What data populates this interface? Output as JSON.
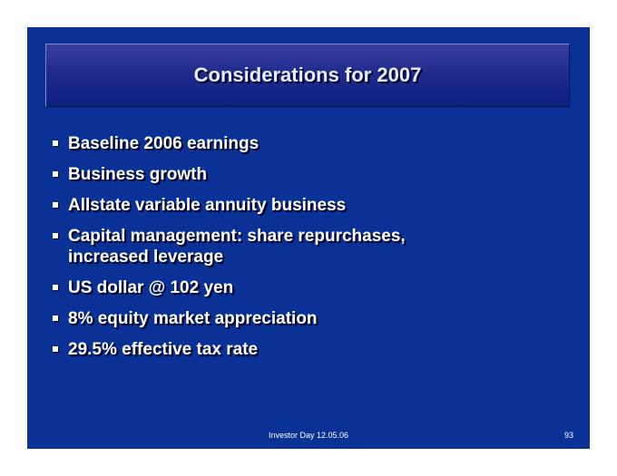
{
  "title": "Considerations for 2007",
  "bullets": [
    "Baseline 2006 earnings",
    "Business growth",
    "Allstate variable annuity business",
    "Capital management: share repurchases, increased leverage",
    "US dollar @ 102 yen",
    "8% equity market appreciation",
    "29.5% effective tax rate"
  ],
  "footer": {
    "text": "Investor Day 12.05.06",
    "page": "93"
  }
}
